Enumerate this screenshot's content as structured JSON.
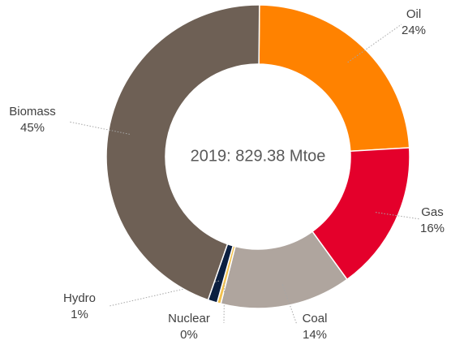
{
  "chart_data": {
    "type": "donut",
    "center_label": "2019: 829.38 Mtoe",
    "categories": [
      "Oil",
      "Gas",
      "Coal",
      "Nuclear",
      "Hydro",
      "Biomass"
    ],
    "values": [
      24,
      16,
      14,
      0.4,
      1,
      45
    ],
    "value_labels": [
      "24%",
      "16%",
      "14%",
      "0%",
      "1%",
      "45%"
    ],
    "colors": [
      "#ff8200",
      "#e4002b",
      "#afa59e",
      "#f2c14e",
      "#0b1f40",
      "#6e6055"
    ]
  }
}
